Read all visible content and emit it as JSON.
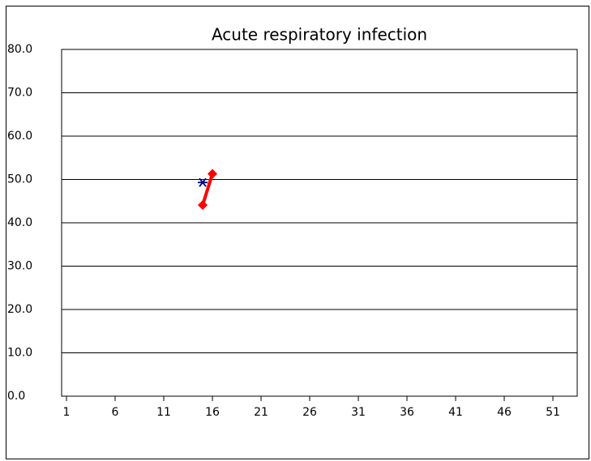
{
  "chart_data": {
    "type": "line",
    "title": "Acute respiratory infection",
    "xlim": [
      0.5,
      53.5
    ],
    "xticks": [
      1,
      6,
      11,
      16,
      21,
      26,
      31,
      36,
      41,
      46,
      51
    ],
    "ylim": [
      0,
      80
    ],
    "yticks": [
      {
        "value": 0,
        "label": "0.0"
      },
      {
        "value": 10,
        "label": "10.0"
      },
      {
        "value": 20,
        "label": "20.0"
      },
      {
        "value": 30,
        "label": "30.0"
      },
      {
        "value": 40,
        "label": "40.0"
      },
      {
        "value": 50,
        "label": "50.0"
      },
      {
        "value": 60,
        "label": "60.0"
      },
      {
        "value": 70,
        "label": "70.0"
      },
      {
        "value": 80,
        "label": "80.0"
      }
    ],
    "grid": true,
    "series": [
      {
        "color": "#ff0000",
        "marker": "diamond",
        "x": [
          15,
          16
        ],
        "values": [
          44.1,
          51.3
        ]
      },
      {
        "color": "#000080",
        "marker": "star",
        "x": [
          15
        ],
        "values": [
          49.3
        ]
      }
    ]
  }
}
